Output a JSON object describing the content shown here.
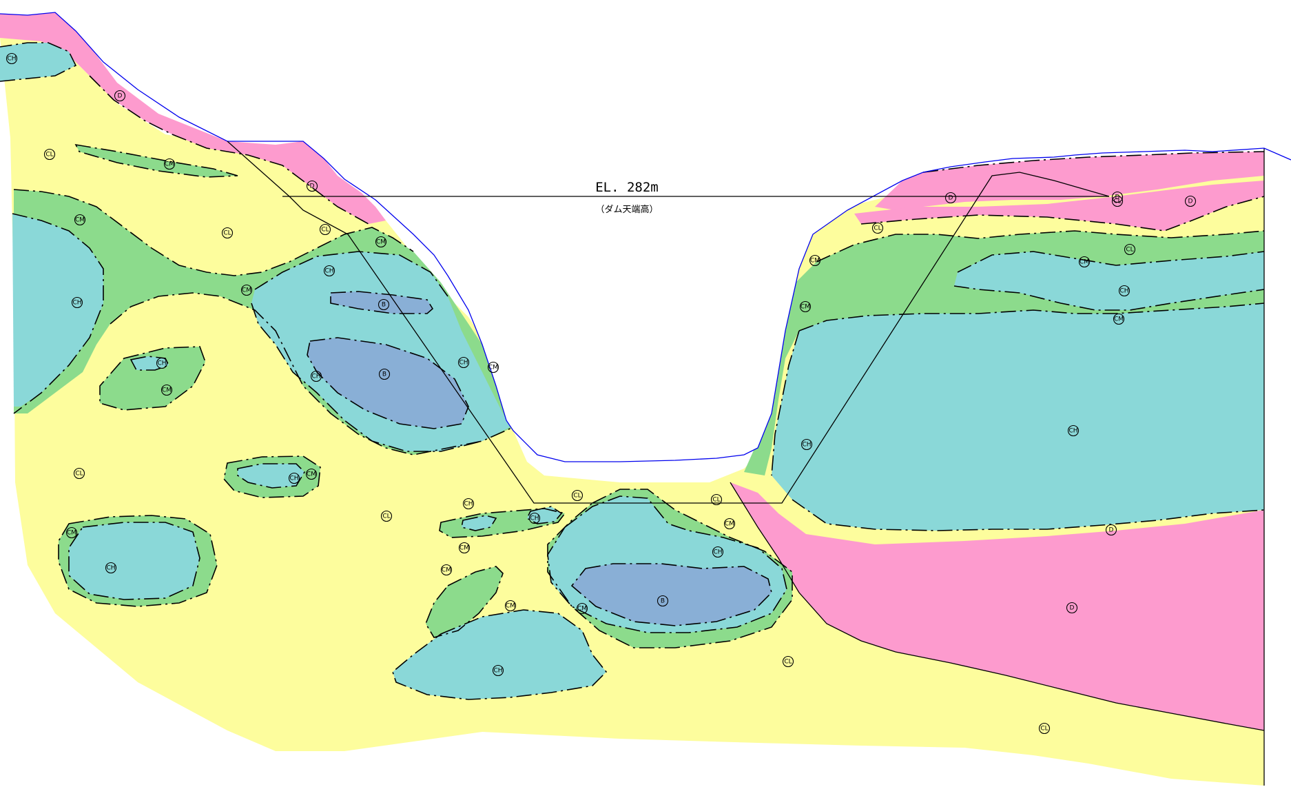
{
  "colors": {
    "CL": "#fdfd9d",
    "CM": "#8cdb8c",
    "CH": "#8ad8d8",
    "B": "#89afd6",
    "D": "#fd9bce",
    "ground_line": "#0000ee",
    "boundary": "#000000"
  },
  "crest": {
    "elevation_label": "EL. 282m",
    "caption": "（ダム天端高）"
  },
  "zone_labels": [
    {
      "cls": "CH"
    },
    {
      "cls": "D"
    },
    {
      "cls": "CL"
    },
    {
      "cls": "CM"
    },
    {
      "cls": "D"
    },
    {
      "cls": "CL"
    },
    {
      "cls": "CM"
    },
    {
      "cls": "CL"
    },
    {
      "cls": "CH"
    },
    {
      "cls": "CM"
    },
    {
      "cls": "CM"
    },
    {
      "cls": "CH"
    },
    {
      "cls": "B"
    },
    {
      "cls": "B"
    },
    {
      "cls": "CH"
    },
    {
      "cls": "CH"
    },
    {
      "cls": "CM"
    },
    {
      "cls": "CH"
    },
    {
      "cls": "CM"
    },
    {
      "cls": "CL"
    },
    {
      "cls": "CH"
    },
    {
      "cls": "CM"
    },
    {
      "cls": "CM"
    },
    {
      "cls": "CH"
    },
    {
      "cls": "CL"
    },
    {
      "cls": "CH"
    },
    {
      "cls": "CH"
    },
    {
      "cls": "CM"
    },
    {
      "cls": "CM"
    },
    {
      "cls": "CM"
    },
    {
      "cls": "CH"
    },
    {
      "cls": "CL"
    },
    {
      "cls": "CL"
    },
    {
      "cls": "CM"
    },
    {
      "cls": "CH"
    },
    {
      "cls": "CM"
    },
    {
      "cls": "B"
    },
    {
      "cls": "CL"
    },
    {
      "cls": "CL"
    },
    {
      "cls": "D"
    },
    {
      "cls": "CL"
    },
    {
      "cls": "D"
    },
    {
      "cls": "CL"
    },
    {
      "cls": "D"
    },
    {
      "cls": "CL"
    },
    {
      "cls": "CM"
    },
    {
      "cls": "CM"
    },
    {
      "cls": "CH"
    },
    {
      "cls": "CM"
    },
    {
      "cls": "CM"
    },
    {
      "cls": "CH"
    },
    {
      "cls": "CH"
    },
    {
      "cls": "D"
    },
    {
      "cls": "D"
    }
  ]
}
